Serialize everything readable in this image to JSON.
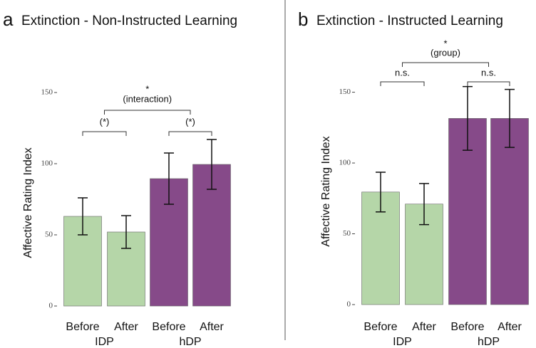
{
  "chart_data": [
    {
      "type": "bar",
      "panel_label": "a",
      "title": "Extinction - Non-Instructed Learning",
      "y_label": "Affective Rating Index",
      "categories": [
        "Before",
        "After",
        "Before",
        "After"
      ],
      "groups": [
        "IDP",
        "hDP"
      ],
      "group_colors": [
        "#b5d6a8",
        "#864a89"
      ],
      "values": [
        63,
        52,
        89.5,
        99.5
      ],
      "errors": [
        13,
        11.5,
        18,
        17.5
      ],
      "ylim": [
        0,
        175
      ],
      "yticks": [
        0,
        50,
        100,
        150
      ],
      "annotations": [
        {
          "lines": [
            "(*)"
          ]
        },
        {
          "lines": [
            "(*)"
          ]
        },
        {
          "lines": [
            "*",
            "(interaction)"
          ]
        }
      ]
    },
    {
      "type": "bar",
      "panel_label": "b",
      "title": "Extinction - Instructed Learning",
      "y_label": "Affective Rating Index",
      "categories": [
        "Before",
        "After",
        "Before",
        "After"
      ],
      "groups": [
        "IDP",
        "hDP"
      ],
      "group_colors": [
        "#b5d6a8",
        "#864a89"
      ],
      "values": [
        79.5,
        71,
        131.5,
        131.5
      ],
      "errors": [
        14,
        14.5,
        22.5,
        20.5
      ],
      "ylim": [
        0,
        190
      ],
      "yticks": [
        0,
        50,
        100,
        150
      ],
      "annotations": [
        {
          "lines": [
            "n.s."
          ]
        },
        {
          "lines": [
            "n.s."
          ]
        },
        {
          "lines": [
            "*",
            "(group)"
          ]
        }
      ]
    }
  ]
}
